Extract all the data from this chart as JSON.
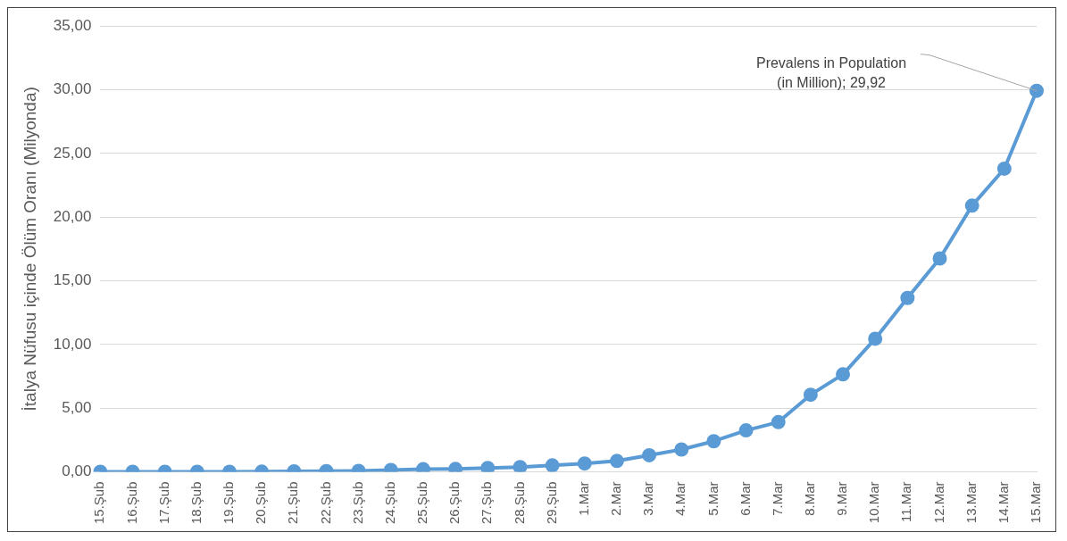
{
  "chart_data": {
    "type": "line",
    "ylabel": "İtalya Nüfusu içinde Ölüm Oranı (Milyonda)",
    "categories": [
      "15.Şub",
      "16.Şub",
      "17.Şub",
      "18.Şub",
      "19.Şub",
      "20.Şub",
      "21.Şub",
      "22.Şub",
      "23.Şub",
      "24.Şub",
      "25.Şub",
      "26.Şub",
      "27.Şub",
      "28.Şub",
      "29.Şub",
      "1.Mar",
      "2.Mar",
      "3.Mar",
      "4.Mar",
      "5.Mar",
      "6.Mar",
      "7.Mar",
      "8.Mar",
      "9.Mar",
      "10.Mar",
      "11.Mar",
      "12.Mar",
      "13.Mar",
      "14.Mar",
      "15.Mar"
    ],
    "series": [
      {
        "color": "#5b9bd5",
        "values": [
          0,
          0,
          0,
          0,
          0,
          0.01,
          0.03,
          0.05,
          0.07,
          0.14,
          0.2,
          0.22,
          0.3,
          0.37,
          0.5,
          0.65,
          0.85,
          1.3,
          1.75,
          2.4,
          3.25,
          3.9,
          6.05,
          7.65,
          10.45,
          13.65,
          16.75,
          20.9,
          23.8,
          29.92
        ]
      }
    ],
    "ylim": [
      0,
      35
    ],
    "yticks": [
      {
        "value": 0,
        "label": "0,00"
      },
      {
        "value": 5,
        "label": "5,00"
      },
      {
        "value": 10,
        "label": "10,00"
      },
      {
        "value": 15,
        "label": "15,00"
      },
      {
        "value": 20,
        "label": "20,00"
      },
      {
        "value": 25,
        "label": "25,00"
      },
      {
        "value": 30,
        "label": "30,00"
      },
      {
        "value": 35,
        "label": "35,00"
      }
    ],
    "grid": "y",
    "legend": false,
    "marker": "circle",
    "line_style": "solid",
    "annotations": [
      {
        "text": "Prevalens in Population\n(in Million); 29,92",
        "x": "15.Mar",
        "y": 29.92
      }
    ]
  }
}
